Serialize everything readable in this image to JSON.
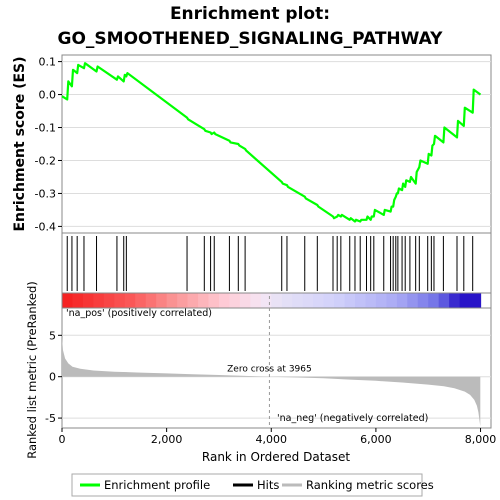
{
  "title_line1": "Enrichment plot:",
  "title_line2": "GO_SMOOTHENED_SIGNALING_PATHWAY",
  "colors": {
    "es_line": "#00ff00",
    "hits": "#000000",
    "metric_fill": "#bbbbbb",
    "pos_label": "#ff0000",
    "neg_label": "#0000ff"
  },
  "chart_data": [
    {
      "type": "line",
      "panel": "enrichment",
      "ylabel": "Enrichment score (ES)",
      "ylim": [
        -0.42,
        0.12
      ],
      "xlim": [
        0,
        8200
      ],
      "yticks": [
        0.1,
        0.0,
        -0.1,
        -0.2,
        -0.3,
        -0.4
      ],
      "ytick_labels": [
        "0.1",
        "0.0",
        "-0.1",
        "-0.2",
        "-0.3",
        "-0.4"
      ],
      "series": [
        {
          "name": "Enrichment profile",
          "x": [
            0,
            100,
            120,
            190,
            210,
            290,
            310,
            420,
            440,
            660,
            680,
            1050,
            1070,
            1180,
            1200,
            1230,
            1250,
            2390,
            2410,
            2720,
            2740,
            2840,
            2860,
            2910,
            2930,
            3200,
            3220,
            3370,
            3390,
            3500,
            3520,
            4200,
            4220,
            4300,
            4320,
            4640,
            4660,
            4880,
            4900,
            5180,
            5200,
            5260,
            5280,
            5330,
            5350,
            5500,
            5520,
            5600,
            5620,
            5700,
            5720,
            5820,
            5840,
            5900,
            5920,
            5960,
            5980,
            6150,
            6170,
            6280,
            6300,
            6330,
            6350,
            6380,
            6400,
            6420,
            6440,
            6500,
            6520,
            6560,
            6580,
            6650,
            6670,
            6760,
            6780,
            6830,
            6850,
            6990,
            7010,
            7060,
            7080,
            7110,
            7130,
            7290,
            7310,
            7550,
            7570,
            7680,
            7700,
            7850,
            7870,
            8000
          ],
          "y": [
            -0.005,
            -0.015,
            0.04,
            0.025,
            0.075,
            0.065,
            0.09,
            0.08,
            0.095,
            0.07,
            0.085,
            0.045,
            0.055,
            0.04,
            0.06,
            0.055,
            0.065,
            -0.07,
            -0.075,
            -0.105,
            -0.11,
            -0.115,
            -0.12,
            -0.115,
            -0.12,
            -0.14,
            -0.145,
            -0.15,
            -0.155,
            -0.165,
            -0.17,
            -0.265,
            -0.27,
            -0.275,
            -0.28,
            -0.31,
            -0.315,
            -0.335,
            -0.34,
            -0.37,
            -0.375,
            -0.37,
            -0.365,
            -0.37,
            -0.365,
            -0.38,
            -0.375,
            -0.385,
            -0.38,
            -0.385,
            -0.38,
            -0.38,
            -0.37,
            -0.38,
            -0.37,
            -0.37,
            -0.35,
            -0.365,
            -0.35,
            -0.355,
            -0.34,
            -0.34,
            -0.32,
            -0.31,
            -0.3,
            -0.3,
            -0.285,
            -0.29,
            -0.27,
            -0.28,
            -0.26,
            -0.265,
            -0.25,
            -0.27,
            -0.235,
            -0.22,
            -0.2,
            -0.21,
            -0.18,
            -0.185,
            -0.155,
            -0.15,
            -0.125,
            -0.145,
            -0.1,
            -0.13,
            -0.08,
            -0.095,
            -0.04,
            -0.055,
            0.015,
            0.0
          ]
        }
      ]
    },
    {
      "type": "scatter",
      "panel": "hits",
      "series": [
        {
          "name": "Hits",
          "x": [
            100,
            190,
            290,
            420,
            660,
            1050,
            1180,
            1230,
            2390,
            2720,
            2840,
            2910,
            3200,
            3370,
            3500,
            4200,
            4300,
            4640,
            4880,
            5180,
            5260,
            5330,
            5500,
            5600,
            5700,
            5820,
            5900,
            5960,
            6150,
            6280,
            6330,
            6380,
            6420,
            6500,
            6560,
            6650,
            6760,
            6830,
            6990,
            7060,
            7110,
            7290,
            7550,
            7680,
            7850
          ]
        }
      ]
    },
    {
      "type": "area",
      "panel": "ranked_metric",
      "ylabel": "Ranked list metric (PreRanked)",
      "xlabel": "Rank in Ordered Dataset",
      "ylim": [
        -6.2,
        8.3
      ],
      "xlim": [
        0,
        8200
      ],
      "yticks": [
        5,
        0,
        -5
      ],
      "ytick_labels": [
        "5",
        "0",
        "-5"
      ],
      "xticks": [
        0,
        2000,
        4000,
        6000,
        8000
      ],
      "xtick_labels": [
        "0",
        "2,000",
        "4,000",
        "6,000",
        "8,000"
      ],
      "zero_cross": 3965,
      "zero_cross_label": "Zero cross at 3965",
      "pos_label": "'na_pos' (positively correlated)",
      "neg_label": "'na_neg' (negatively correlated)",
      "series": [
        {
          "name": "Ranking metric scores",
          "x": [
            0,
            20,
            60,
            120,
            200,
            350,
            600,
            1000,
            1500,
            2000,
            2500,
            3000,
            3500,
            3965,
            4500,
            5000,
            5500,
            6000,
            6500,
            7000,
            7300,
            7500,
            7700,
            7800,
            7880,
            7930,
            7960,
            7980,
            7995
          ],
          "y": [
            4.8,
            3.2,
            2.2,
            1.6,
            1.2,
            0.95,
            0.75,
            0.6,
            0.5,
            0.4,
            0.3,
            0.2,
            0.1,
            0.0,
            -0.1,
            -0.2,
            -0.35,
            -0.5,
            -0.7,
            -0.95,
            -1.15,
            -1.4,
            -1.8,
            -2.2,
            -2.8,
            -3.5,
            -4.3,
            -5.3,
            -6.0
          ]
        }
      ]
    }
  ],
  "legend": {
    "items": [
      {
        "label": "Enrichment profile",
        "kind": "line"
      },
      {
        "label": "Hits",
        "kind": "hits"
      },
      {
        "label": "Ranking metric scores",
        "kind": "metric"
      }
    ]
  }
}
